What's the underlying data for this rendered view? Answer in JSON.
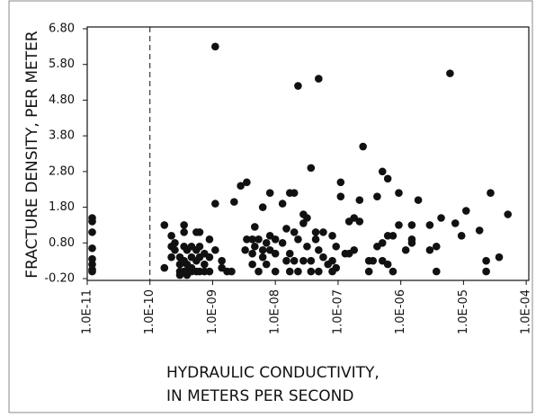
{
  "chart_data": {
    "type": "scatter",
    "ylabel": "FRACTURE DENSITY, PER METER",
    "xlabel": [
      "HYDRAULIC CONDUCTIVITY,",
      "IN METERS PER SECOND"
    ],
    "xscale": "log",
    "color": "#111111",
    "vline": 1e-10,
    "xlim": [
      1e-11,
      0.00011
    ],
    "ylim": [
      -0.25,
      6.85
    ],
    "xticks": [
      {
        "value": 1e-11,
        "label": "1.0E-11"
      },
      {
        "value": 1e-10,
        "label": "1.0E-10"
      },
      {
        "value": 1e-09,
        "label": "1.0E-09"
      },
      {
        "value": 1e-08,
        "label": "1.0E-08"
      },
      {
        "value": 1e-07,
        "label": "1.0E-07"
      },
      {
        "value": 1e-06,
        "label": "1.0E-06"
      },
      {
        "value": 1e-05,
        "label": "1.0E-05"
      },
      {
        "value": 0.0001,
        "label": "1.0E-04"
      }
    ],
    "yticks": [
      {
        "value": 6.8,
        "label": "6.80"
      },
      {
        "value": 5.8,
        "label": "5.80"
      },
      {
        "value": 4.8,
        "label": "4.80"
      },
      {
        "value": 3.8,
        "label": "3.80"
      },
      {
        "value": 2.8,
        "label": "2.80"
      },
      {
        "value": 1.8,
        "label": "1.80"
      },
      {
        "value": 0.8,
        "label": "0.80"
      },
      {
        "value": -0.2,
        "label": "-0.20"
      }
    ],
    "x": [
      1.2e-11,
      1.2e-11,
      1.2e-11,
      1.2e-11,
      1.2e-11,
      1.2e-11,
      1.2e-11,
      1.2e-11,
      1.7e-10,
      1.7e-10,
      2.2e-10,
      2.2e-10,
      2.2e-10,
      2.5e-10,
      2.5e-10,
      3e-10,
      3e-10,
      3e-10,
      3e-10,
      3.5e-10,
      3.5e-10,
      3.5e-10,
      3.5e-10,
      3.5e-10,
      3.9e-10,
      3.9e-10,
      3.9e-10,
      3.9e-10,
      4.6e-10,
      4.6e-10,
      4.6e-10,
      4.6e-10,
      5.5e-10,
      5.5e-10,
      5.5e-10,
      5.5e-10,
      6.2e-10,
      6.2e-10,
      6.2e-10,
      6.2e-10,
      7.4e-10,
      7.4e-10,
      7.4e-10,
      8.9e-10,
      8.9e-10,
      8.9e-10,
      1.1e-09,
      1.1e-09,
      1.1e-09,
      1.4e-09,
      1.4e-09,
      1.7e-09,
      2e-09,
      2.2e-09,
      2.8e-09,
      3.3e-09,
      3.5e-09,
      3.5e-09,
      4.3e-09,
      4.3e-09,
      4.3e-09,
      4.7e-09,
      4.7e-09,
      5.4e-09,
      5.4e-09,
      6.3e-09,
      6.3e-09,
      6.3e-09,
      7.2e-09,
      7.2e-09,
      8.2e-09,
      8.2e-09,
      8.2e-09,
      1e-08,
      1e-08,
      1e-08,
      1.3e-08,
      1.3e-08,
      1.5e-08,
      1.5e-08,
      1.7e-08,
      1.7e-08,
      1.7e-08,
      2e-08,
      2e-08,
      2e-08,
      2.3e-08,
      2.3e-08,
      2.3e-08,
      2.8e-08,
      2.8e-08,
      2.8e-08,
      3.2e-08,
      3.2e-08,
      3.7e-08,
      3.7e-08,
      3.7e-08,
      4.4e-08,
      4.4e-08,
      4.9e-08,
      4.9e-08,
      4.9e-08,
      5.8e-08,
      5.8e-08,
      6.9e-08,
      8.1e-08,
      8.1e-08,
      8.1e-08,
      9.3e-08,
      9.3e-08,
      1.1e-07,
      1.1e-07,
      1.3e-07,
      1.5e-07,
      1.5e-07,
      1.8e-07,
      1.8e-07,
      2.2e-07,
      2.2e-07,
      2.5e-07,
      3.1e-07,
      3.1e-07,
      3.6e-07,
      4.2e-07,
      4.2e-07,
      5.1e-07,
      5.1e-07,
      5.1e-07,
      6.2e-07,
      6.2e-07,
      6.2e-07,
      7.5e-07,
      7.5e-07,
      9.3e-07,
      9.3e-07,
      1.2e-06,
      1.5e-06,
      1.5e-06,
      1.5e-06,
      1.9e-06,
      2.9e-06,
      2.9e-06,
      3.7e-06,
      3.7e-06,
      4.4e-06,
      6.1e-06,
      7.4e-06,
      9.3e-06,
      1.1e-05,
      1.8e-05,
      2.3e-05,
      2.3e-05,
      2.7e-05,
      3.7e-05,
      5.1e-05
    ],
    "values": [
      1.5,
      1.4,
      1.1,
      0.65,
      0.35,
      0.2,
      0.05,
      0,
      1.3,
      0.1,
      1.0,
      0.7,
      0.4,
      0.8,
      0.6,
      0.4,
      0.2,
      0,
      -0.1,
      1.3,
      1.1,
      0.7,
      0.3,
      0,
      0.6,
      0.2,
      0,
      -0.1,
      0.7,
      0.4,
      0.1,
      0,
      1.1,
      0.6,
      0.3,
      0,
      1.1,
      0.7,
      0.4,
      0,
      0.5,
      0.2,
      0,
      0.9,
      0.4,
      0,
      6.3,
      1.9,
      0.6,
      0.3,
      0.1,
      0,
      0,
      1.95,
      2.4,
      0.6,
      2.5,
      0.9,
      0.9,
      0.5,
      0.2,
      1.25,
      0.7,
      0.9,
      0,
      1.8,
      0.6,
      0.4,
      0.8,
      0.2,
      2.2,
      1.0,
      0.6,
      0.9,
      0.5,
      0,
      1.9,
      0.8,
      1.2,
      0.3,
      2.2,
      0.5,
      0,
      2.2,
      1.1,
      0.3,
      5.2,
      0.9,
      0,
      1.6,
      1.35,
      0.3,
      1.5,
      0.7,
      2.9,
      0.3,
      0,
      1.1,
      0.9,
      5.4,
      0.6,
      0,
      1.1,
      0.4,
      0.2,
      1.0,
      0.3,
      0,
      0.7,
      0.1,
      2.5,
      2.1,
      0.5,
      1.4,
      0.5,
      1.5,
      0.6,
      2.0,
      1.4,
      3.5,
      0.3,
      0,
      0.3,
      2.1,
      0.7,
      2.8,
      0.8,
      0.3,
      2.6,
      1.0,
      0.2,
      1.0,
      0,
      2.2,
      1.3,
      0.6,
      1.3,
      0.9,
      0.8,
      2.0,
      1.3,
      0.6,
      0.7,
      0,
      1.5,
      5.55,
      1.35,
      1.0,
      1.7,
      1.15,
      0.3,
      0,
      2.2,
      0.4,
      1.6
    ]
  }
}
